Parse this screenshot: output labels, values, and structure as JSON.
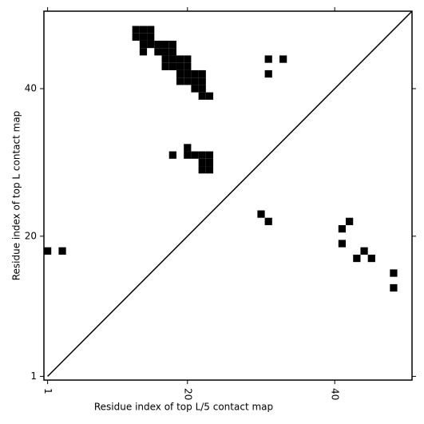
{
  "chart_data": {
    "type": "scatter",
    "marker": "square",
    "diagonal": true,
    "x_label": "Residue index of top L/5 contact map",
    "y_label": "Residue index of top L contact map",
    "xlim": [
      0.5,
      50.5
    ],
    "ylim": [
      0.5,
      50.5
    ],
    "xticks": [
      1,
      20,
      40
    ],
    "yticks": [
      1,
      20,
      40
    ],
    "series": [
      {
        "color": "#000000",
        "x": [
          30,
          31,
          41,
          42,
          41,
          44,
          43,
          45,
          48,
          48,
          1,
          3,
          31,
          33,
          31,
          18,
          20,
          20,
          21,
          22,
          23,
          22,
          23,
          22,
          23,
          13,
          14,
          15,
          13,
          14,
          15,
          14,
          15,
          16,
          17,
          18,
          14,
          16,
          17,
          18,
          17,
          18,
          19,
          20,
          17,
          18,
          19,
          20,
          19,
          20,
          21,
          22,
          19,
          20,
          21,
          22,
          21,
          22,
          22,
          23
        ],
        "values": [
          23,
          22,
          21,
          22,
          19,
          18,
          17,
          17,
          15,
          13,
          18,
          18,
          44,
          44,
          42,
          31,
          32,
          31,
          31,
          31,
          31,
          30,
          30,
          29,
          29,
          48,
          48,
          48,
          47,
          47,
          47,
          46,
          46,
          46,
          46,
          46,
          45,
          45,
          45,
          45,
          44,
          44,
          44,
          44,
          43,
          43,
          43,
          43,
          42,
          42,
          42,
          42,
          41,
          41,
          41,
          41,
          40,
          40,
          39,
          39
        ]
      }
    ]
  }
}
